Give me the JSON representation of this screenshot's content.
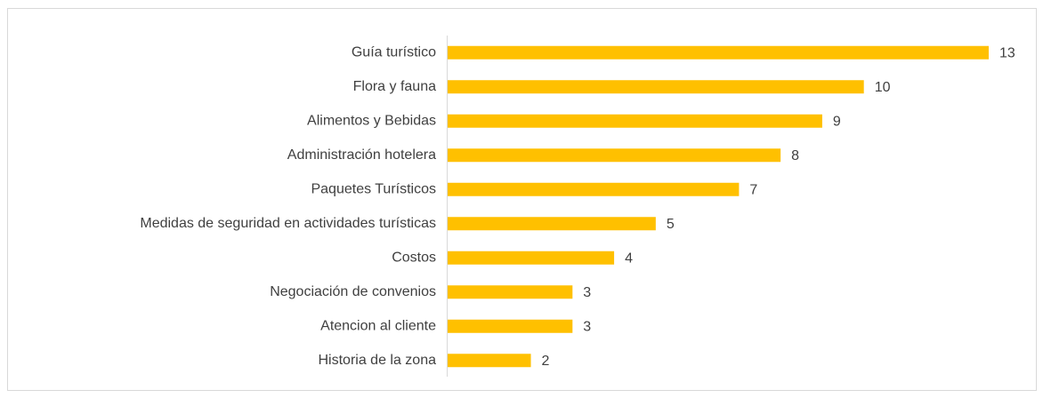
{
  "chart_data": {
    "type": "barh",
    "categories": [
      "Guía turístico",
      "Flora y fauna",
      "Alimentos y Bebidas",
      "Administración hotelera",
      "Paquetes Turísticos",
      "Medidas de seguridad en actividades turísticas",
      "Costos",
      "Negociación de convenios",
      "Atencion al cliente",
      "Historia de la zona"
    ],
    "values": [
      13,
      10,
      9,
      8,
      7,
      5,
      4,
      3,
      3,
      2
    ],
    "color": "#ffc000",
    "xlim": [
      0,
      13
    ]
  }
}
